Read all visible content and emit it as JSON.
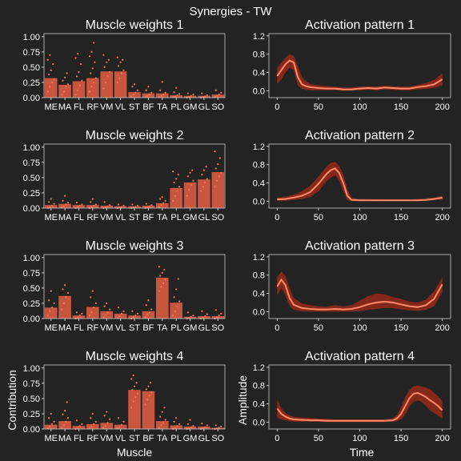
{
  "title": "Synergies - TW",
  "colors": {
    "background": "#232323",
    "bar": "#c8553d",
    "points": "#f07860",
    "line": "#ff8a6a",
    "band": "#8a2a1a",
    "text": "#ffffff",
    "axis": "#cccccc"
  },
  "weights_axis": {
    "xlabel": "Muscle",
    "ylabel": "Contribution",
    "ylim": [
      0,
      1.05
    ],
    "yticks": [
      "0.00",
      "0.25",
      "0.50",
      "0.75",
      "1.00"
    ],
    "ytick_values": [
      0,
      0.25,
      0.5,
      0.75,
      1.0
    ],
    "categories": [
      "ME",
      "MA",
      "FL",
      "RF",
      "VM",
      "VL",
      "ST",
      "BF",
      "TA",
      "PL",
      "GM",
      "GL",
      "SO"
    ]
  },
  "activation_axis": {
    "xlabel": "Time",
    "ylabel": "Amplitude",
    "xlim": [
      -10,
      210
    ],
    "ylim": [
      -0.15,
      1.25
    ],
    "xticks": [
      "0",
      "50",
      "100",
      "150",
      "200"
    ],
    "xtick_values": [
      0,
      50,
      100,
      150,
      200
    ],
    "yticks": [
      "0.0",
      "0.4",
      "0.8",
      "1.2"
    ],
    "ytick_values": [
      0,
      0.4,
      0.8,
      1.2
    ]
  },
  "chart_data": [
    {
      "type": "bar",
      "title": "Muscle weights 1",
      "categories": [
        "ME",
        "MA",
        "FL",
        "RF",
        "VM",
        "VL",
        "ST",
        "BF",
        "TA",
        "PL",
        "GM",
        "GL",
        "SO"
      ],
      "values": [
        0.32,
        0.21,
        0.27,
        0.32,
        0.43,
        0.43,
        0.09,
        0.07,
        0.07,
        0.04,
        0.03,
        0.03,
        0.05
      ],
      "points": [
        [
          0.1,
          0.18,
          0.25,
          0.3,
          0.38,
          0.45,
          0.55,
          0.62,
          0.7
        ],
        [
          0.05,
          0.1,
          0.18,
          0.22,
          0.28,
          0.33,
          0.4
        ],
        [
          0.05,
          0.12,
          0.2,
          0.28,
          0.35,
          0.42,
          0.55,
          0.65,
          0.72
        ],
        [
          0.1,
          0.18,
          0.25,
          0.32,
          0.4,
          0.48,
          0.58,
          0.68,
          0.75,
          0.9
        ],
        [
          0.15,
          0.25,
          0.35,
          0.42,
          0.5,
          0.58,
          0.62,
          0.7
        ],
        [
          0.25,
          0.32,
          0.4,
          0.45,
          0.52,
          0.58,
          0.62,
          0.66
        ],
        [
          0.02,
          0.05,
          0.08,
          0.12,
          0.18,
          0.22
        ],
        [
          0.01,
          0.03,
          0.05,
          0.08,
          0.12,
          0.18
        ],
        [
          0.01,
          0.03,
          0.05,
          0.08,
          0.12,
          0.26
        ],
        [
          0.01,
          0.02,
          0.04,
          0.06,
          0.09,
          0.16
        ],
        [
          0.0,
          0.01,
          0.03,
          0.05,
          0.07
        ],
        [
          0.0,
          0.01,
          0.02,
          0.04,
          0.07
        ],
        [
          0.01,
          0.03,
          0.05,
          0.08,
          0.12
        ]
      ]
    },
    {
      "type": "line",
      "title": "Activation pattern 1",
      "x": [
        0,
        5,
        10,
        15,
        20,
        25,
        30,
        35,
        40,
        50,
        60,
        70,
        80,
        90,
        100,
        110,
        120,
        130,
        140,
        150,
        160,
        170,
        180,
        190,
        200
      ],
      "y": [
        0.32,
        0.45,
        0.58,
        0.66,
        0.62,
        0.3,
        0.14,
        0.1,
        0.08,
        0.06,
        0.05,
        0.05,
        0.03,
        0.03,
        0.05,
        0.06,
        0.05,
        0.07,
        0.06,
        0.05,
        0.05,
        0.08,
        0.1,
        0.14,
        0.25
      ],
      "upper": [
        0.5,
        0.62,
        0.72,
        0.8,
        0.76,
        0.55,
        0.3,
        0.2,
        0.15,
        0.12,
        0.1,
        0.09,
        0.07,
        0.07,
        0.09,
        0.1,
        0.09,
        0.11,
        0.1,
        0.09,
        0.09,
        0.13,
        0.17,
        0.24,
        0.38
      ],
      "lower": [
        0.15,
        0.25,
        0.4,
        0.5,
        0.46,
        0.12,
        0.04,
        0.02,
        0.01,
        0.01,
        0.01,
        0.01,
        0.0,
        0.0,
        0.01,
        0.02,
        0.01,
        0.03,
        0.02,
        0.01,
        0.01,
        0.03,
        0.04,
        0.06,
        0.12
      ]
    },
    {
      "type": "bar",
      "title": "Muscle weights 2",
      "categories": [
        "ME",
        "MA",
        "FL",
        "RF",
        "VM",
        "VL",
        "ST",
        "BF",
        "TA",
        "PL",
        "GM",
        "GL",
        "SO"
      ],
      "values": [
        0.05,
        0.07,
        0.05,
        0.05,
        0.04,
        0.03,
        0.03,
        0.04,
        0.08,
        0.33,
        0.42,
        0.47,
        0.59
      ],
      "points": [
        [
          0.0,
          0.02,
          0.04,
          0.07,
          0.1,
          0.15
        ],
        [
          0.01,
          0.03,
          0.06,
          0.09,
          0.12,
          0.2
        ],
        [
          0.0,
          0.02,
          0.04,
          0.06,
          0.09
        ],
        [
          0.0,
          0.02,
          0.04,
          0.06,
          0.1,
          0.15
        ],
        [
          0.0,
          0.01,
          0.03,
          0.05,
          0.1
        ],
        [
          0.0,
          0.01,
          0.02,
          0.04,
          0.06
        ],
        [
          0.0,
          0.01,
          0.02,
          0.04,
          0.06
        ],
        [
          0.0,
          0.01,
          0.03,
          0.05,
          0.07
        ],
        [
          0.02,
          0.05,
          0.08,
          0.12,
          0.15,
          0.18
        ],
        [
          0.12,
          0.2,
          0.28,
          0.35,
          0.42,
          0.48,
          0.55,
          0.6
        ],
        [
          0.2,
          0.3,
          0.38,
          0.45,
          0.52,
          0.58,
          0.62
        ],
        [
          0.28,
          0.35,
          0.42,
          0.48,
          0.55,
          0.62,
          0.68
        ],
        [
          0.35,
          0.45,
          0.52,
          0.58,
          0.65,
          0.72,
          0.82,
          0.93
        ]
      ]
    },
    {
      "type": "line",
      "title": "Activation pattern 2",
      "x": [
        0,
        10,
        20,
        30,
        40,
        50,
        60,
        65,
        70,
        75,
        80,
        85,
        90,
        100,
        110,
        120,
        130,
        140,
        150,
        160,
        170,
        180,
        190,
        200
      ],
      "y": [
        0.04,
        0.05,
        0.08,
        0.12,
        0.2,
        0.38,
        0.6,
        0.68,
        0.72,
        0.62,
        0.4,
        0.12,
        0.03,
        0.02,
        0.02,
        0.02,
        0.02,
        0.02,
        0.02,
        0.02,
        0.02,
        0.03,
        0.05,
        0.08
      ],
      "upper": [
        0.08,
        0.1,
        0.14,
        0.22,
        0.34,
        0.54,
        0.76,
        0.84,
        0.86,
        0.78,
        0.58,
        0.26,
        0.07,
        0.05,
        0.05,
        0.04,
        0.04,
        0.04,
        0.04,
        0.04,
        0.05,
        0.06,
        0.08,
        0.12
      ],
      "lower": [
        0.01,
        0.01,
        0.03,
        0.05,
        0.09,
        0.22,
        0.44,
        0.52,
        0.57,
        0.46,
        0.22,
        0.02,
        0.0,
        0.0,
        0.0,
        0.0,
        0.0,
        0.0,
        0.0,
        0.0,
        0.0,
        0.01,
        0.02,
        0.04
      ]
    },
    {
      "type": "bar",
      "title": "Muscle weights 3",
      "categories": [
        "ME",
        "MA",
        "FL",
        "RF",
        "VM",
        "VL",
        "ST",
        "BF",
        "TA",
        "PL",
        "GM",
        "GL",
        "SO"
      ],
      "values": [
        0.18,
        0.37,
        0.05,
        0.19,
        0.12,
        0.08,
        0.05,
        0.12,
        0.67,
        0.26,
        0.03,
        0.04,
        0.04
      ],
      "points": [
        [
          0.05,
          0.12,
          0.18,
          0.25,
          0.3,
          0.45
        ],
        [
          0.15,
          0.25,
          0.35,
          0.42,
          0.48,
          0.55
        ],
        [
          0.0,
          0.02,
          0.05,
          0.08,
          0.1
        ],
        [
          0.05,
          0.1,
          0.18,
          0.25,
          0.35,
          0.45
        ],
        [
          0.02,
          0.06,
          0.1,
          0.15,
          0.2,
          0.25
        ],
        [
          0.01,
          0.04,
          0.08,
          0.12,
          0.18
        ],
        [
          0.0,
          0.02,
          0.05,
          0.08,
          0.12
        ],
        [
          0.02,
          0.06,
          0.1,
          0.15,
          0.22,
          0.3
        ],
        [
          0.45,
          0.52,
          0.58,
          0.64,
          0.7,
          0.75,
          0.8,
          0.85
        ],
        [
          0.05,
          0.12,
          0.2,
          0.28,
          0.35,
          0.48,
          0.65
        ],
        [
          0.0,
          0.01,
          0.03,
          0.05,
          0.1
        ],
        [
          0.0,
          0.02,
          0.04,
          0.07,
          0.12
        ],
        [
          0.0,
          0.02,
          0.05,
          0.08,
          0.14
        ]
      ]
    },
    {
      "type": "line",
      "title": "Activation pattern 3",
      "x": [
        0,
        5,
        10,
        15,
        20,
        30,
        40,
        50,
        60,
        70,
        80,
        90,
        100,
        110,
        120,
        130,
        140,
        150,
        160,
        170,
        180,
        190,
        200
      ],
      "y": [
        0.55,
        0.7,
        0.58,
        0.3,
        0.15,
        0.08,
        0.06,
        0.05,
        0.05,
        0.06,
        0.05,
        0.06,
        0.1,
        0.16,
        0.2,
        0.22,
        0.2,
        0.16,
        0.12,
        0.1,
        0.14,
        0.28,
        0.6
      ],
      "upper": [
        0.75,
        0.88,
        0.78,
        0.52,
        0.3,
        0.18,
        0.14,
        0.12,
        0.11,
        0.14,
        0.12,
        0.14,
        0.24,
        0.34,
        0.4,
        0.38,
        0.32,
        0.28,
        0.22,
        0.2,
        0.26,
        0.45,
        0.75
      ],
      "lower": [
        0.35,
        0.52,
        0.36,
        0.12,
        0.04,
        0.01,
        0.0,
        0.0,
        0.0,
        0.0,
        0.0,
        0.0,
        0.01,
        0.04,
        0.06,
        0.08,
        0.08,
        0.05,
        0.03,
        0.02,
        0.04,
        0.12,
        0.42
      ]
    },
    {
      "type": "bar",
      "title": "Muscle weights 4",
      "categories": [
        "ME",
        "MA",
        "FL",
        "RF",
        "VM",
        "VL",
        "ST",
        "BF",
        "TA",
        "PL",
        "GM",
        "GL",
        "SO"
      ],
      "values": [
        0.07,
        0.13,
        0.05,
        0.08,
        0.1,
        0.07,
        0.64,
        0.62,
        0.13,
        0.06,
        0.04,
        0.04,
        0.02
      ],
      "points": [
        [
          0.01,
          0.04,
          0.08,
          0.12,
          0.18,
          0.25
        ],
        [
          0.02,
          0.06,
          0.12,
          0.18,
          0.24,
          0.3,
          0.44
        ],
        [
          0.0,
          0.02,
          0.05,
          0.08,
          0.14
        ],
        [
          0.01,
          0.04,
          0.08,
          0.12,
          0.18,
          0.25
        ],
        [
          0.02,
          0.05,
          0.1,
          0.16,
          0.22,
          0.28
        ],
        [
          0.01,
          0.03,
          0.07,
          0.12,
          0.18
        ],
        [
          0.35,
          0.45,
          0.52,
          0.58,
          0.64,
          0.7,
          0.76,
          0.82,
          0.88
        ],
        [
          0.4,
          0.48,
          0.55,
          0.6,
          0.65,
          0.7,
          0.76
        ],
        [
          0.02,
          0.06,
          0.1,
          0.15,
          0.2,
          0.28,
          0.35
        ],
        [
          0.0,
          0.02,
          0.05,
          0.08,
          0.12,
          0.18
        ],
        [
          0.0,
          0.01,
          0.03,
          0.05,
          0.08,
          0.15
        ],
        [
          0.0,
          0.01,
          0.03,
          0.06,
          0.09
        ],
        [
          0.0,
          0.01,
          0.02,
          0.04,
          0.06
        ]
      ]
    },
    {
      "type": "line",
      "title": "Activation pattern 4",
      "x": [
        0,
        5,
        10,
        15,
        20,
        30,
        40,
        50,
        60,
        70,
        80,
        90,
        100,
        110,
        120,
        130,
        140,
        145,
        150,
        155,
        160,
        165,
        170,
        175,
        180,
        185,
        190,
        195,
        200
      ],
      "y": [
        0.3,
        0.18,
        0.12,
        0.08,
        0.06,
        0.05,
        0.04,
        0.04,
        0.03,
        0.03,
        0.03,
        0.03,
        0.03,
        0.03,
        0.03,
        0.03,
        0.04,
        0.08,
        0.18,
        0.35,
        0.52,
        0.62,
        0.64,
        0.6,
        0.55,
        0.48,
        0.42,
        0.35,
        0.26
      ],
      "upper": [
        0.5,
        0.3,
        0.2,
        0.15,
        0.12,
        0.1,
        0.09,
        0.08,
        0.07,
        0.06,
        0.06,
        0.06,
        0.06,
        0.06,
        0.06,
        0.06,
        0.08,
        0.16,
        0.32,
        0.55,
        0.7,
        0.78,
        0.8,
        0.78,
        0.76,
        0.72,
        0.64,
        0.56,
        0.46
      ],
      "lower": [
        0.1,
        0.06,
        0.04,
        0.02,
        0.01,
        0.01,
        0.01,
        0.01,
        0.0,
        0.0,
        0.0,
        0.0,
        0.0,
        0.0,
        0.0,
        0.0,
        0.01,
        0.02,
        0.06,
        0.16,
        0.34,
        0.44,
        0.48,
        0.44,
        0.36,
        0.26,
        0.2,
        0.14,
        0.08
      ]
    }
  ]
}
